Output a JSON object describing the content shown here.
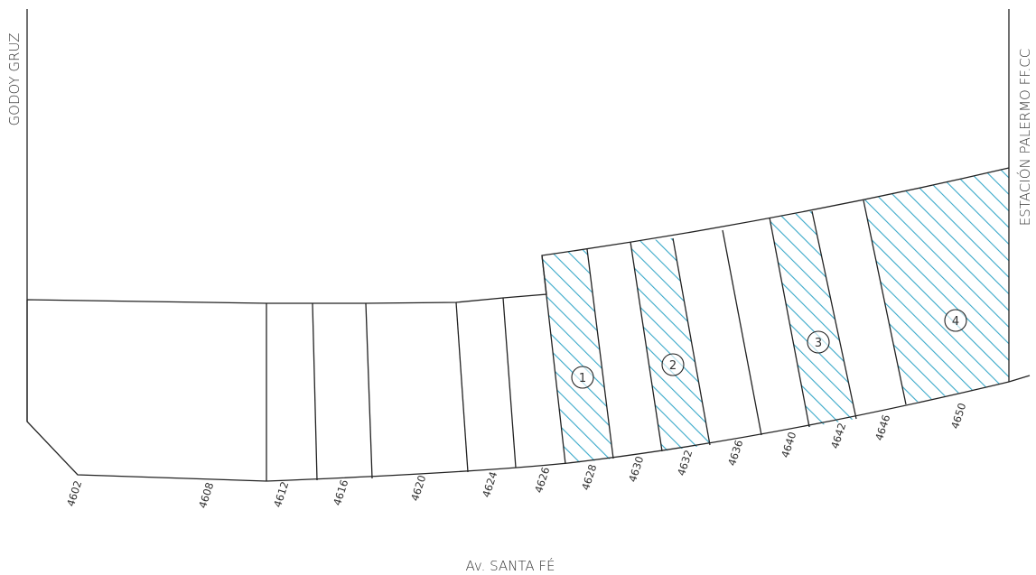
{
  "streets": {
    "left": "GODOY GRUZ",
    "right": "ESTACIÓN PALERMO FF.CC",
    "bottom": "Av. SANTA FÉ"
  },
  "lot_numbers": [
    "4602",
    "4608",
    "4612",
    "4616",
    "4620",
    "4624",
    "4626",
    "4628",
    "4630",
    "4632",
    "4636",
    "4640",
    "4642",
    "4646",
    "4650"
  ],
  "highlighted_lots": [
    {
      "badge": "1",
      "lot": "4628"
    },
    {
      "badge": "2",
      "lot": "4632"
    },
    {
      "badge": "3",
      "lot": "4642"
    },
    {
      "badge": "4",
      "lot": "4650"
    }
  ],
  "colors": {
    "hatch": "#3aa9c9",
    "line": "#222222",
    "text": "#333333"
  }
}
